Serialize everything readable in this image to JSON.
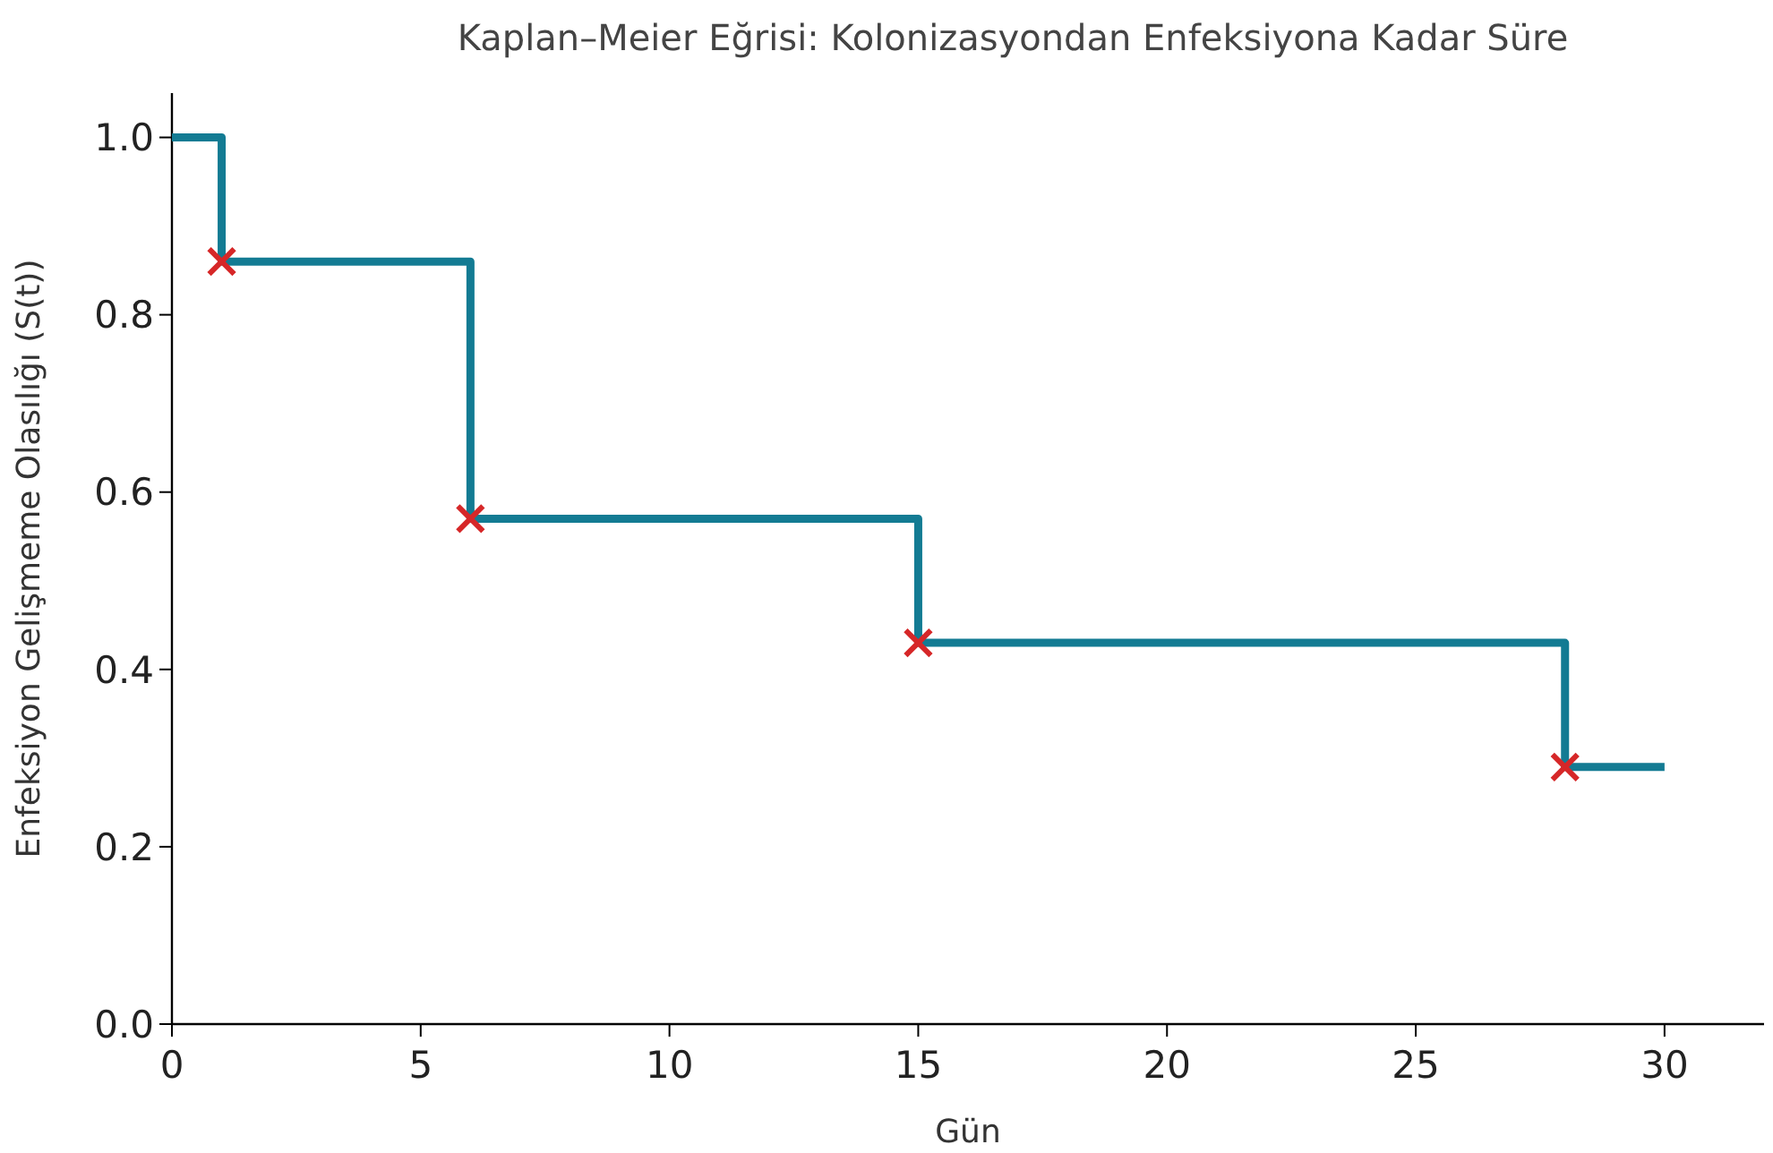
{
  "chart_data": {
    "type": "step",
    "title": "Kaplan–Meier Eğrisi: Kolonizasyondan Enfeksiyona Kadar Süre",
    "xlabel": "Gün",
    "ylabel": "Enfeksiyon Gelişmeme Olasılığı (S(t))",
    "xlim": [
      0,
      32
    ],
    "ylim": [
      0,
      1.05
    ],
    "xticks": [
      0,
      5,
      10,
      15,
      20,
      25,
      30
    ],
    "yticks": [
      {
        "value": 0,
        "label": "0.0"
      },
      {
        "value": 0.2,
        "label": "0.2"
      },
      {
        "value": 0.4,
        "label": "0.4"
      },
      {
        "value": 0.6,
        "label": "0.6"
      },
      {
        "value": 0.8,
        "label": "0.8"
      },
      {
        "value": 1,
        "label": "1.0"
      }
    ],
    "grid": false,
    "series": [
      {
        "type": "step",
        "color": "#137b93",
        "x": [
          0,
          1,
          6,
          15,
          28,
          30
        ],
        "values": [
          1,
          0.86,
          0.57,
          0.43,
          0.29,
          0.29
        ],
        "marker": "none"
      },
      {
        "type": "scatter",
        "color": "#d62728",
        "x": [
          1,
          6,
          15,
          28
        ],
        "values": [
          0.86,
          0.57,
          0.43,
          0.29
        ],
        "marker": "cross"
      }
    ]
  }
}
